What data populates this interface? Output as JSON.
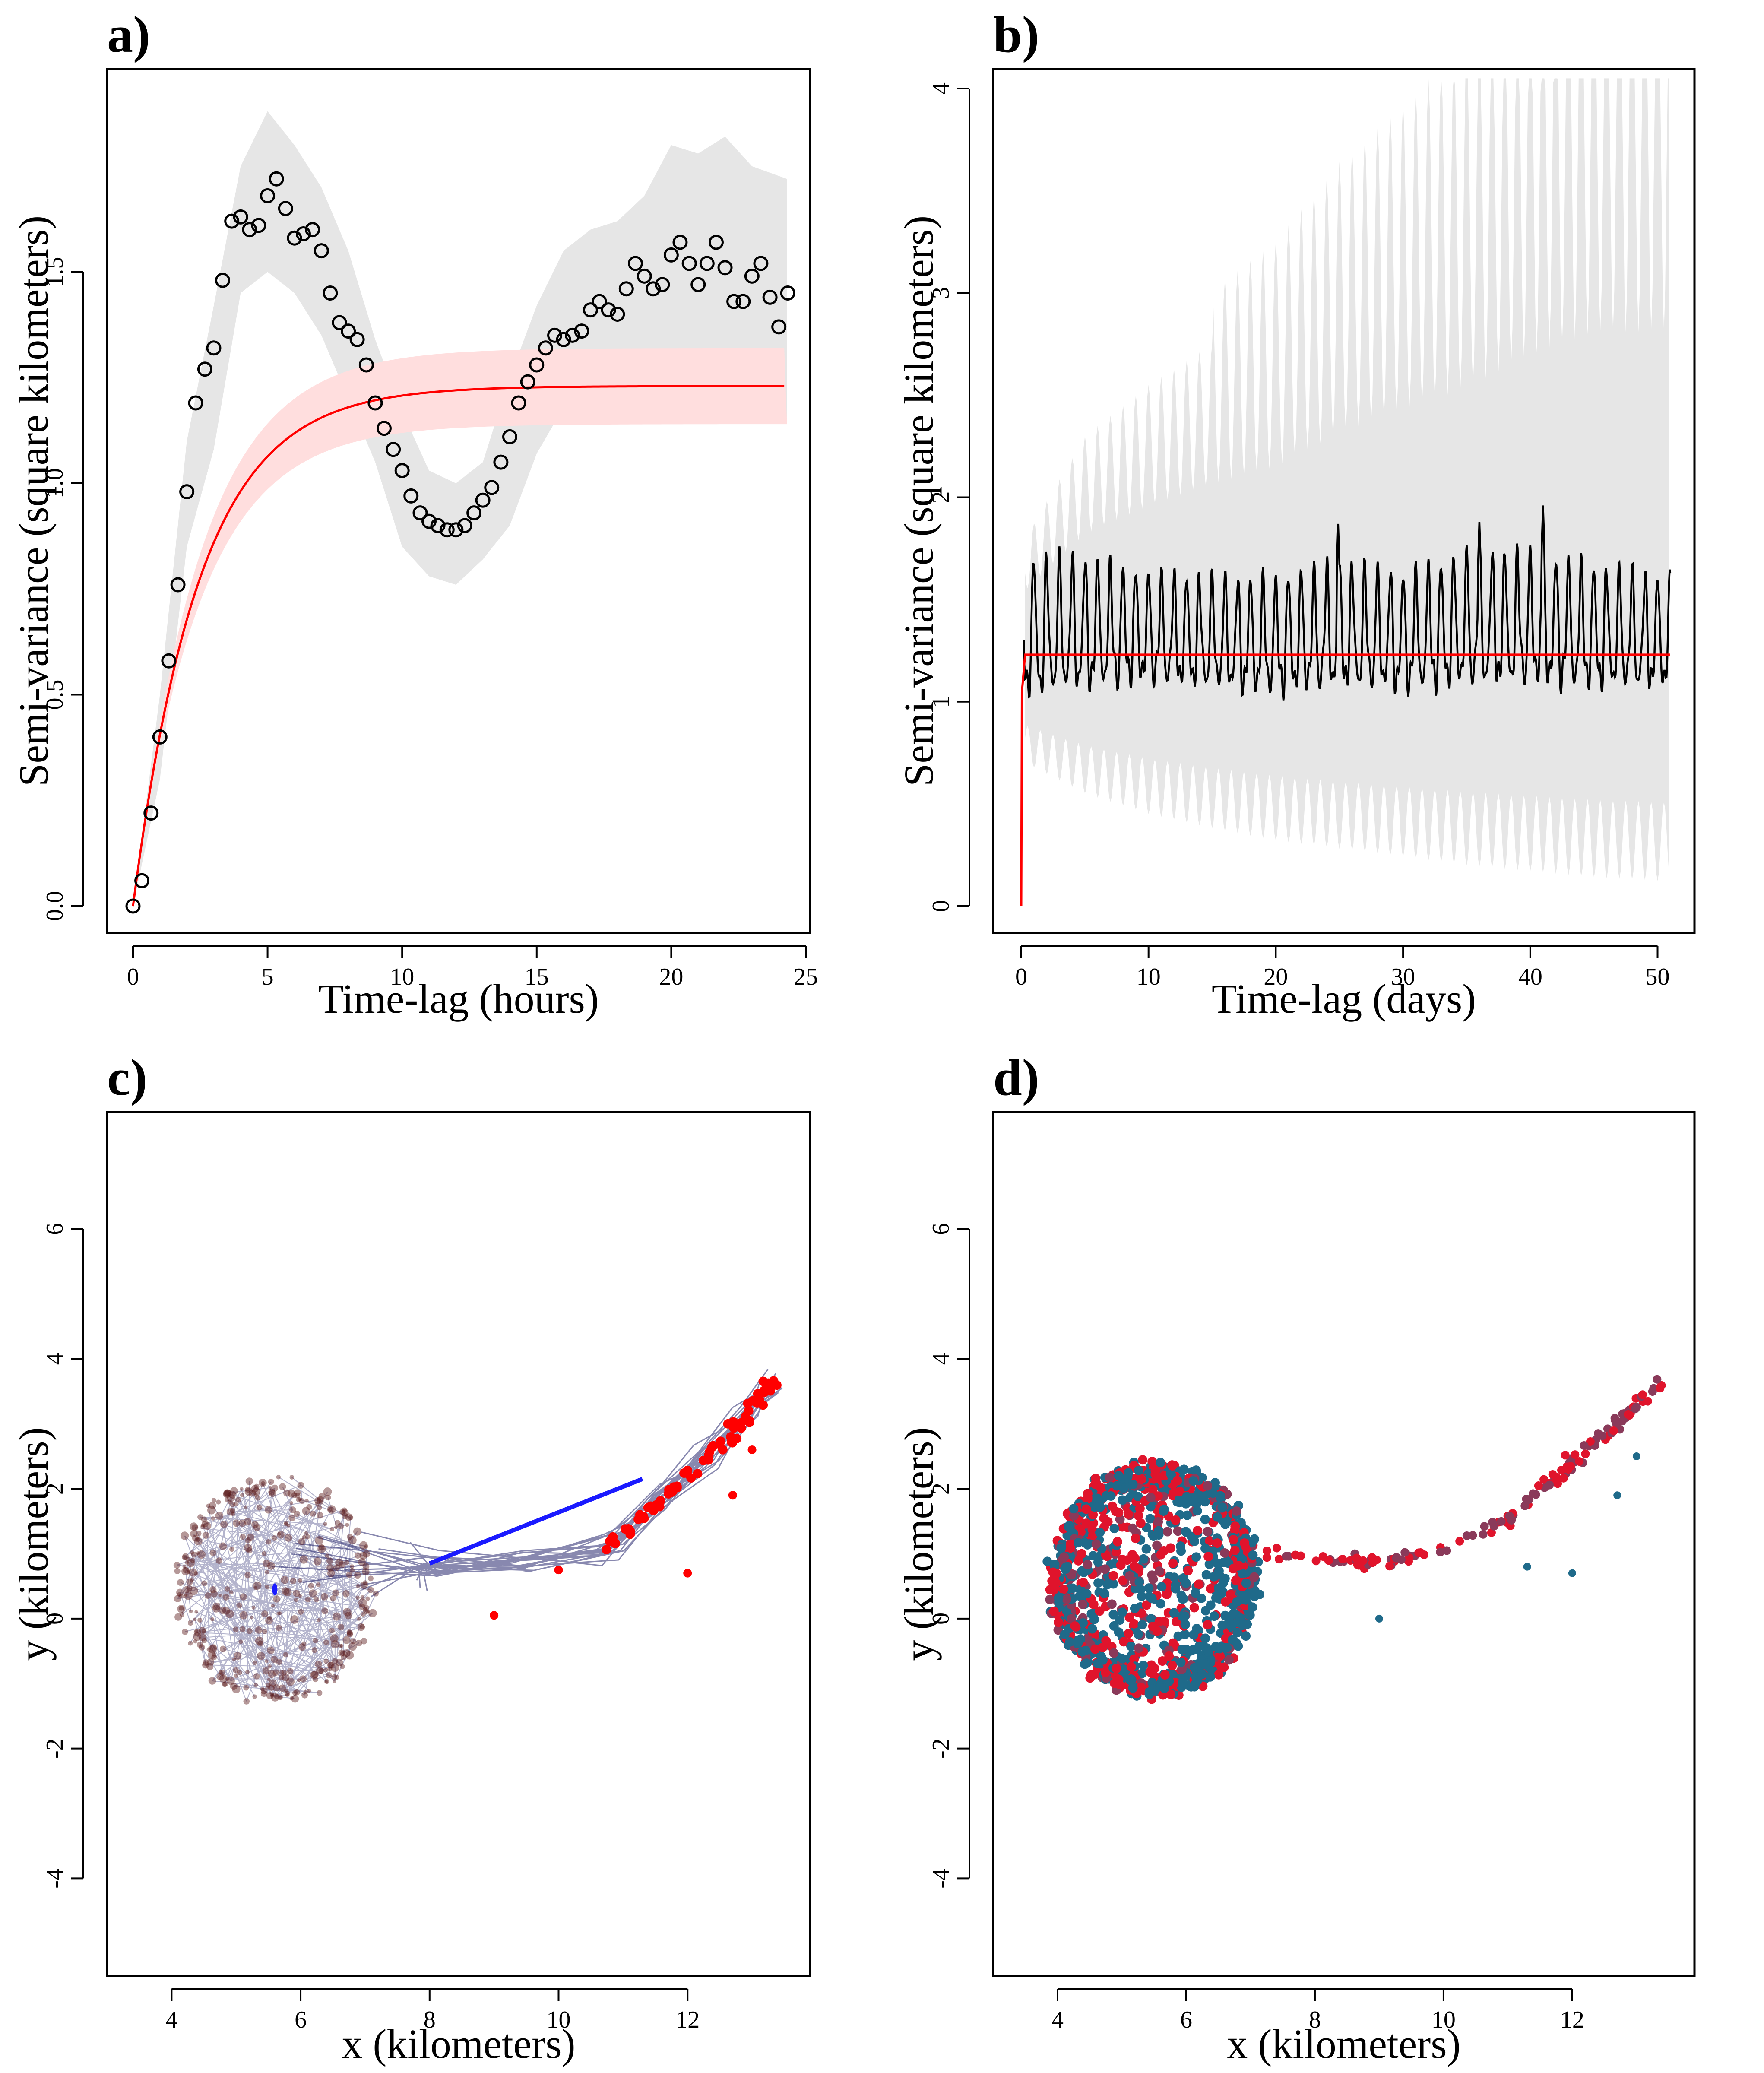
{
  "chart_data": [
    {
      "panel": "a)",
      "type": "scatter",
      "xlabel": "Time-lag (hours)",
      "ylabel": "Semi-variance (square kilometers)",
      "xlim": [
        0,
        25
      ],
      "ylim": [
        0,
        1.9
      ],
      "xticks": [
        0,
        5,
        10,
        15,
        20,
        25
      ],
      "xtick_labels": [
        "0",
        "5",
        "10",
        "15",
        "20",
        "25"
      ],
      "yticks": [
        0,
        0.5,
        1.0,
        1.5
      ],
      "ytick_labels": [
        "0.0",
        "0.5",
        "1.0",
        "1.5"
      ],
      "colors": {
        "points": "#000000",
        "model": "#ff0000",
        "model_band": "#ffdede",
        "empirical_band": "#e6e6e6"
      },
      "x": [
        0,
        0.33,
        0.67,
        1.0,
        1.33,
        1.67,
        2.0,
        2.33,
        2.67,
        3.0,
        3.33,
        3.67,
        4.0,
        4.33,
        4.67,
        5.0,
        5.33,
        5.67,
        6.0,
        6.33,
        6.67,
        7.0,
        7.33,
        7.67,
        8.0,
        8.33,
        8.67,
        9.0,
        9.33,
        9.67,
        10.0,
        10.33,
        10.67,
        11.0,
        11.33,
        11.67,
        12.0,
        12.33,
        12.67,
        13.0,
        13.33,
        13.67,
        14.0,
        14.33,
        14.67,
        15.0,
        15.33,
        15.67,
        16.0,
        16.33,
        16.67,
        17.0,
        17.33,
        17.67,
        18.0,
        18.33,
        18.67,
        19.0,
        19.33,
        19.67,
        20.0,
        20.33,
        20.67,
        21.0,
        21.33,
        21.67,
        22.0,
        22.33,
        22.67,
        23.0,
        23.33,
        23.67,
        24.0,
        24.33
      ],
      "y": [
        0.0,
        0.06,
        0.22,
        0.4,
        0.58,
        0.76,
        0.98,
        1.19,
        1.27,
        1.32,
        1.48,
        1.62,
        1.63,
        1.6,
        1.61,
        1.68,
        1.72,
        1.65,
        1.58,
        1.59,
        1.6,
        1.55,
        1.45,
        1.38,
        1.36,
        1.34,
        1.28,
        1.19,
        1.13,
        1.08,
        1.03,
        0.97,
        0.93,
        0.91,
        0.9,
        0.89,
        0.89,
        0.9,
        0.93,
        0.96,
        0.99,
        1.05,
        1.11,
        1.19,
        1.24,
        1.28,
        1.32,
        1.35,
        1.34,
        1.35,
        1.36,
        1.41,
        1.43,
        1.41,
        1.4,
        1.46,
        1.52,
        1.49,
        1.46,
        1.47,
        1.54,
        1.57,
        1.52,
        1.47,
        1.52,
        1.57,
        1.51,
        1.43,
        1.43,
        1.49,
        1.52,
        1.44,
        1.37,
        1.45
      ],
      "model": {
        "sill": 1.23,
        "range": 2.5,
        "lower": 1.14,
        "upper": 1.32
      },
      "empirical_band": {
        "x": [
          0,
          1,
          2,
          3,
          4,
          5,
          6,
          7,
          8,
          9,
          10,
          11,
          12,
          13,
          14,
          15,
          16,
          17,
          18,
          19,
          20,
          21,
          22,
          23,
          24.3
        ],
        "lower": [
          0.0,
          0.3,
          0.85,
          1.08,
          1.45,
          1.5,
          1.45,
          1.35,
          1.2,
          1.05,
          0.85,
          0.78,
          0.76,
          0.82,
          0.9,
          1.07,
          1.18,
          1.22,
          1.26,
          1.28,
          1.3,
          1.25,
          1.28,
          1.22,
          1.15
        ],
        "upper": [
          0.0,
          0.5,
          1.1,
          1.42,
          1.75,
          1.88,
          1.8,
          1.7,
          1.55,
          1.34,
          1.17,
          1.03,
          1.0,
          1.05,
          1.25,
          1.42,
          1.55,
          1.6,
          1.62,
          1.68,
          1.8,
          1.78,
          1.82,
          1.75,
          1.72
        ]
      }
    },
    {
      "panel": "b)",
      "type": "line",
      "xlabel": "Time-lag (days)",
      "ylabel": "Semi-variance (square kilometers)",
      "xlim": [
        0,
        51
      ],
      "ylim": [
        0,
        4
      ],
      "xticks": [
        0,
        10,
        20,
        30,
        40,
        50
      ],
      "xtick_labels": [
        "0",
        "10",
        "20",
        "30",
        "40",
        "50"
      ],
      "yticks": [
        0,
        1,
        2,
        3,
        4
      ],
      "ytick_labels": [
        "0",
        "1",
        "2",
        "3",
        "4"
      ],
      "colors": {
        "line": "#000000",
        "model": "#ff0000",
        "band": "#e6e6e6"
      },
      "period_days": 1,
      "max_lag_days": 51,
      "envelope": {
        "x": [
          0.3,
          5,
          10,
          15,
          20,
          25,
          30,
          35,
          40,
          45,
          51
        ],
        "max": [
          1.72,
          1.72,
          1.64,
          1.62,
          1.62,
          1.7,
          1.64,
          1.74,
          1.75,
          1.68,
          1.62
        ],
        "min": [
          0.9,
          0.95,
          1.0,
          0.97,
          0.94,
          0.96,
          0.95,
          0.96,
          0.97,
          0.96,
          0.97
        ]
      },
      "spike_peaks": [
        {
          "x": 24.9,
          "y": 1.87
        },
        {
          "x": 36.0,
          "y": 1.88
        },
        {
          "x": 41.0,
          "y": 1.96
        }
      ],
      "model": {
        "sill": 1.23
      },
      "band_upper": {
        "x": [
          0.3,
          5,
          10,
          15,
          20,
          25,
          30,
          35,
          40,
          45,
          51
        ],
        "y": [
          1.8,
          2.3,
          2.55,
          2.75,
          2.9,
          3.2,
          3.4,
          3.6,
          3.9,
          4.1,
          4.1
        ]
      },
      "band_lower": {
        "x": [
          0.3,
          5,
          10,
          15,
          20,
          25,
          30,
          35,
          40,
          45,
          51
        ],
        "y": [
          0.7,
          0.55,
          0.45,
          0.38,
          0.32,
          0.28,
          0.24,
          0.2,
          0.17,
          0.14,
          0.12
        ]
      }
    },
    {
      "panel": "c)",
      "type": "scatter",
      "xlabel": "x (kilometers)",
      "ylabel": "y (kilometers)",
      "xlim": [
        3.0,
        13.9
      ],
      "ylim": [
        -5.5,
        7.8
      ],
      "xticks": [
        4,
        6,
        8,
        10,
        12
      ],
      "xtick_labels": [
        "4",
        "6",
        "8",
        "10",
        "12"
      ],
      "yticks": [
        -4,
        -2,
        0,
        2,
        4,
        6
      ],
      "ytick_labels": [
        "-4",
        "-2",
        "0",
        "2",
        "4",
        "6"
      ],
      "colors": {
        "home_points": "#5a1a1a",
        "excursion_points": "#ff0000",
        "track": "#26266e",
        "excursion_track": "#1a1aff",
        "center": "#1a1aff"
      },
      "home_range_center": {
        "x": 5.6,
        "y": 0.45
      },
      "excursion_path": [
        {
          "x": 8.0,
          "y": 0.8
        },
        {
          "x": 9.5,
          "y": 0.9
        },
        {
          "x": 10.8,
          "y": 1.1
        },
        {
          "x": 11.6,
          "y": 1.8
        },
        {
          "x": 12.3,
          "y": 2.5
        },
        {
          "x": 12.9,
          "y": 3.1
        },
        {
          "x": 13.3,
          "y": 3.6
        }
      ],
      "outlier_points": [
        {
          "x": 12.0,
          "y": 0.7
        },
        {
          "x": 12.7,
          "y": 1.9
        },
        {
          "x": 13.0,
          "y": 2.6
        },
        {
          "x": 10.0,
          "y": 0.75
        },
        {
          "x": 9.0,
          "y": 0.05
        }
      ]
    },
    {
      "panel": "d)",
      "type": "scatter",
      "xlabel": "x (kilometers)",
      "ylabel": "y (kilometers)",
      "xlim": [
        3.0,
        13.9
      ],
      "ylim": [
        -5.5,
        7.8
      ],
      "xticks": [
        4,
        6,
        8,
        10,
        12
      ],
      "xtick_labels": [
        "4",
        "6",
        "8",
        "10",
        "12"
      ],
      "yticks": [
        -4,
        -2,
        0,
        2,
        4,
        6
      ],
      "ytick_labels": [
        "-4",
        "-2",
        "0",
        "2",
        "4",
        "6"
      ],
      "colors": {
        "observed": "#e0142c",
        "simulated": "#1f6a8a",
        "mixed": "#8a3a5a"
      },
      "home_range_center": {
        "x": 5.5,
        "y": 0.6
      },
      "excursion_path": [
        {
          "x": 7.0,
          "y": 1.0
        },
        {
          "x": 8.5,
          "y": 0.85
        },
        {
          "x": 9.7,
          "y": 0.95
        },
        {
          "x": 11.0,
          "y": 1.5
        },
        {
          "x": 12.0,
          "y": 2.4
        },
        {
          "x": 12.8,
          "y": 3.1
        },
        {
          "x": 13.3,
          "y": 3.6
        }
      ],
      "outlier_points": [
        {
          "x": 9.0,
          "y": 0.0
        },
        {
          "x": 11.3,
          "y": 0.8
        },
        {
          "x": 12.0,
          "y": 0.7
        },
        {
          "x": 12.7,
          "y": 1.9
        },
        {
          "x": 13.0,
          "y": 2.5
        }
      ]
    }
  ]
}
